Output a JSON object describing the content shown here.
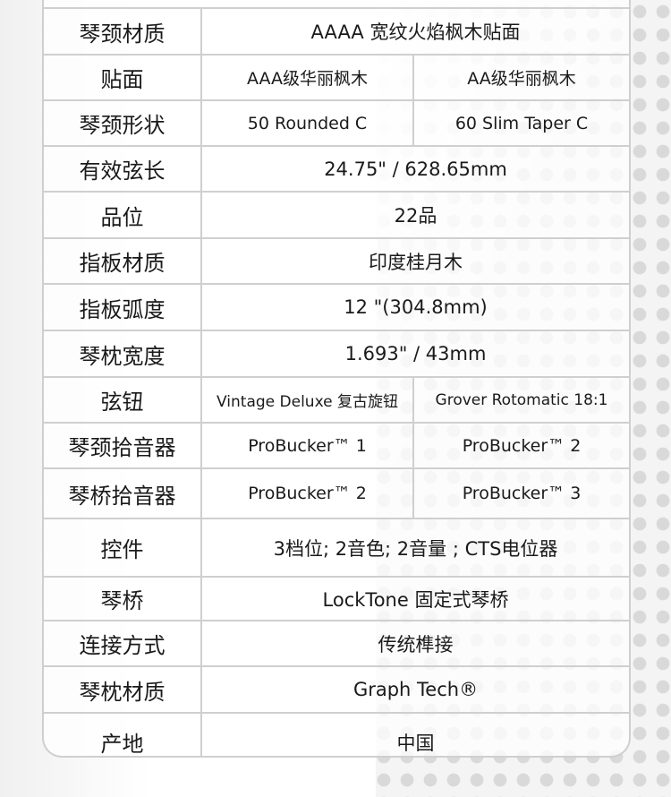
{
  "rows": [
    {
      "label": "琴颈材质",
      "values": [
        "AAAA 宽纹火焰枫木贴面"
      ]
    },
    {
      "label": "贴面",
      "values": [
        "AAA级华丽枫木",
        "AA级华丽枫木"
      ]
    },
    {
      "label": "琴颈形状",
      "values": [
        "50 Rounded C",
        "60 Slim Taper C"
      ]
    },
    {
      "label": "有效弦长",
      "values": [
        "24.75\"  / 628.65mm"
      ]
    },
    {
      "label": "品位",
      "values": [
        "22品"
      ]
    },
    {
      "label": "指板材质",
      "values": [
        "印度桂月木"
      ]
    },
    {
      "label": "指板弧度",
      "values": [
        "12  \"(304.8mm)"
      ]
    },
    {
      "label": "琴枕宽度",
      "values": [
        "1.693\"  / 43mm"
      ]
    },
    {
      "label": "弦钮",
      "values": [
        "Vintage Deluxe 复古旋钮",
        "Grover Rotomatic 18:1"
      ]
    },
    {
      "label": "琴颈拾音器",
      "values": [
        "ProBucker™ 1",
        "ProBucker™ 2"
      ]
    },
    {
      "label": "琴桥拾音器",
      "values": [
        "ProBucker™ 2",
        "ProBucker™ 3"
      ]
    },
    {
      "label": "控件",
      "values": [
        "3档位; 2音色; 2音量 ; CTS电位器"
      ]
    },
    {
      "label": "琴桥",
      "values": [
        "LockTone  固定式琴桥"
      ]
    },
    {
      "label": "连接方式",
      "values": [
        "传统榫接"
      ]
    },
    {
      "label": "琴枕材质",
      "values": [
        "Graph Tech®"
      ]
    },
    {
      "label": "产地",
      "values": [
        "中国"
      ]
    }
  ]
}
